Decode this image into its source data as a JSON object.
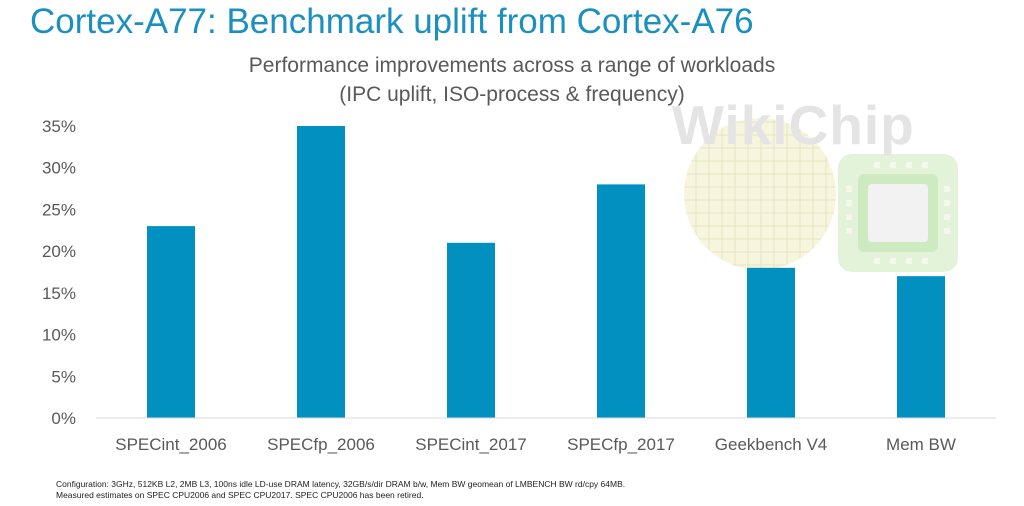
{
  "slide": {
    "title": "Cortex-A77: Benchmark uplift from Cortex-A76"
  },
  "watermark": {
    "text": "WikiChip"
  },
  "chart_data": {
    "type": "bar",
    "title": [
      "Performance improvements across a range of workloads",
      "(IPC uplift, ISO-process & frequency)"
    ],
    "categories": [
      "SPECint_2006",
      "SPECfp_2006",
      "SPECint_2017",
      "SPECfp_2017",
      "Geekbench V4",
      "Mem BW"
    ],
    "values": [
      23,
      35,
      21,
      28,
      18,
      17
    ],
    "unit": "%",
    "ylim": [
      0,
      35
    ],
    "yticks": [
      0,
      5,
      10,
      15,
      20,
      25,
      30,
      35
    ],
    "ytick_labels": [
      "0%",
      "5%",
      "10%",
      "15%",
      "20%",
      "25%",
      "30%",
      "35%"
    ],
    "grid": false,
    "bar_color": "#0190c0",
    "axis_color": "#d9d9d9"
  },
  "footnotes": [
    "Configuration: 3GHz, 512KB L2, 2MB L3, 100ns idle LD-use DRAM latency, 32GB/s/dir DRAM b/w, Mem BW geomean of LMBENCH BW rd/cpy 64MB.",
    "Measured estimates on SPEC CPU2006 and SPEC CPU2017.  SPEC CPU2006 has been retired."
  ]
}
